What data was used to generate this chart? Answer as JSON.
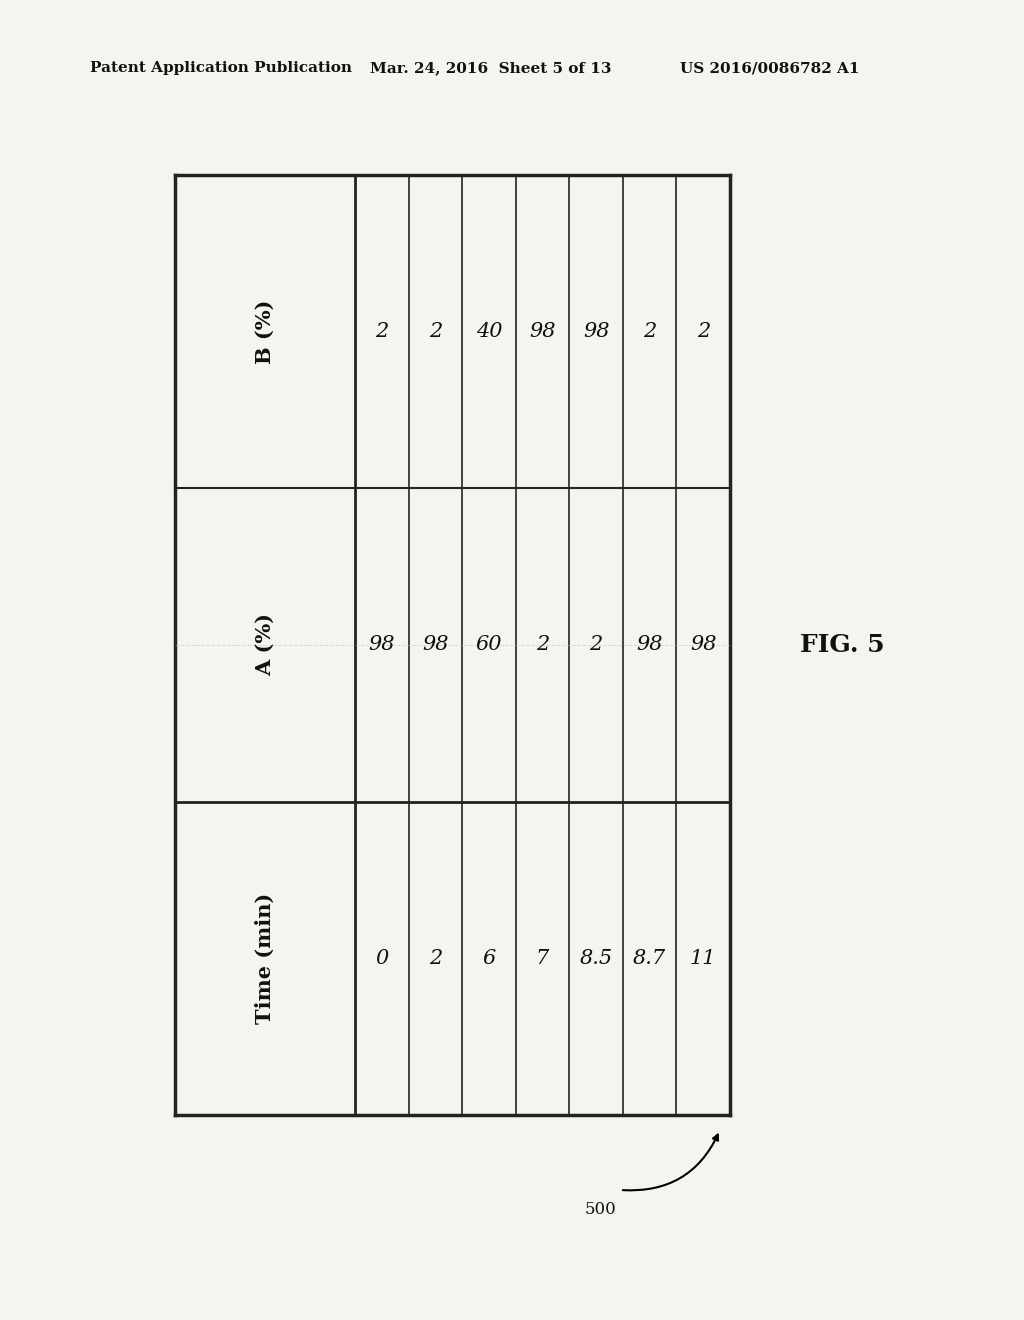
{
  "header_left": "Patent Application Publication",
  "header_center": "Mar. 24, 2016  Sheet 5 of 13",
  "header_right": "US 2016/0086782 A1",
  "col_headers": [
    "Time (min)",
    "A (%)",
    "B (%)"
  ],
  "time_values": [
    "0",
    "2",
    "6",
    "7",
    "8.5",
    "8.7",
    "11"
  ],
  "a_values": [
    "98",
    "98",
    "60",
    "2",
    "2",
    "98",
    "98"
  ],
  "b_values": [
    "2",
    "2",
    "40",
    "98",
    "98",
    "2",
    "2"
  ],
  "fig_label": "FIG. 5",
  "callout_label": "500",
  "background_color": "#f5f5f0",
  "table_line_color": "#222222",
  "header_font_size": 11,
  "cell_font_size": 15,
  "fig_font_size": 18
}
